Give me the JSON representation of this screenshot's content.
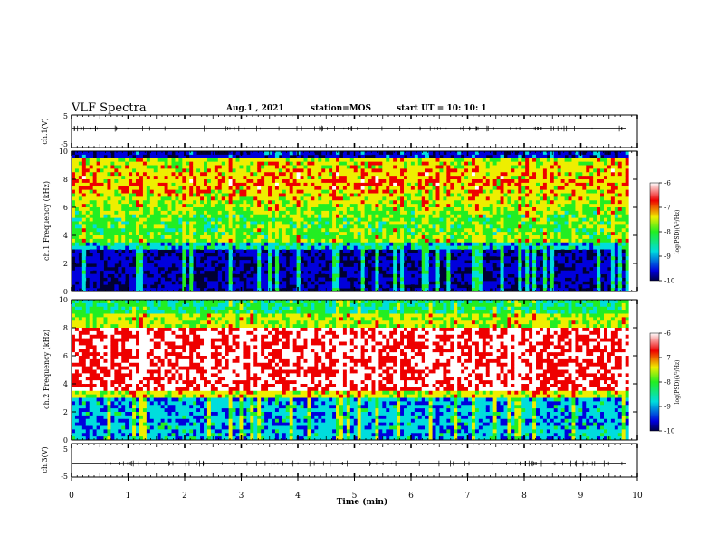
{
  "header": {
    "title": "VLF Spectra",
    "date": "Aug.1 , 2021",
    "station": "station=MOS",
    "start": "start UT = 10: 10: 1"
  },
  "chart_data": [
    {
      "type": "line",
      "ylabel": "ch.1(V)",
      "ylim": [
        -5,
        5
      ],
      "yticks": [
        "5",
        "-5"
      ],
      "xlim": [
        0,
        10
      ],
      "baseline": 0
    },
    {
      "type": "heatmap",
      "ylabel": "ch.1 Frequency (kHz)",
      "ylim": [
        0,
        10
      ],
      "yticks": [
        "0",
        "2",
        "4",
        "6",
        "8",
        "10"
      ],
      "xlim": [
        0,
        10
      ],
      "colorbar": {
        "label": "log(PSD)(V²/Hz)",
        "range": [
          -10,
          -6
        ],
        "ticks": [
          "-6",
          "-7",
          "-8",
          "-9",
          "-10"
        ]
      },
      "band_low_khz": [
        0,
        3.5
      ],
      "band_high_khz": [
        3.5,
        9.5
      ],
      "dark_top_khz": [
        9.5,
        10
      ]
    },
    {
      "type": "heatmap",
      "ylabel": "ch.2 Frequency (kHz)",
      "ylim": [
        0,
        10
      ],
      "yticks": [
        "0",
        "2",
        "4",
        "6",
        "8",
        "10"
      ],
      "xlim": [
        0,
        10
      ],
      "colorbar": {
        "label": "log(PSD)(V²/Hz)",
        "range": [
          -10,
          -6
        ],
        "ticks": [
          "-6",
          "-7",
          "-8",
          "-9",
          "-10"
        ]
      },
      "band_low_khz": [
        0,
        3
      ],
      "band_high_khz": [
        3.5,
        8
      ]
    },
    {
      "type": "line",
      "ylabel": "ch.3(V)",
      "ylim": [
        -5,
        5
      ],
      "yticks": [
        "5",
        "-5"
      ],
      "xlim": [
        0,
        10
      ],
      "baseline": 0
    }
  ],
  "xaxis": {
    "label": "Time (min)",
    "ticks": [
      "0",
      "1",
      "2",
      "3",
      "4",
      "5",
      "6",
      "7",
      "8",
      "9",
      "10"
    ],
    "data_end_min": 9.85
  },
  "colors": {
    "dark": "#000033",
    "blue": "#0000dd",
    "cyan": "#00dddd",
    "green": "#22ee22",
    "yellow": "#eeee00",
    "red": "#ee0000",
    "white": "#ffffff"
  }
}
